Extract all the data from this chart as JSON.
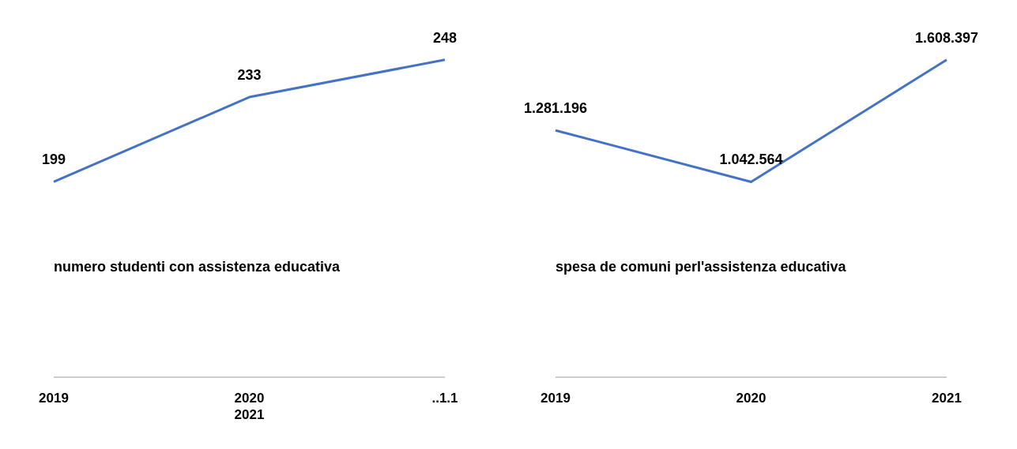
{
  "chart_data": [
    {
      "type": "line",
      "title": "numero studenti con assistenza educativa",
      "categories": [
        "2019",
        "2020",
        "..1.1"
      ],
      "series": [
        {
          "color": "#4472c4",
          "values": [
            199,
            233,
            248
          ]
        }
      ],
      "data_labels": true,
      "marker": "none",
      "annotations": [
        "2021"
      ]
    },
    {
      "type": "line",
      "title": "spesa de comuni perl'assistenza educativa",
      "categories": [
        "2019",
        "2020",
        "2021"
      ],
      "series": [
        {
          "color": "#4472c4",
          "values": [
            1281196,
            1042564,
            1608397
          ],
          "value_labels": [
            "1.281.196",
            "1.042.564",
            "1.608.397"
          ]
        }
      ],
      "marker": "none"
    }
  ]
}
